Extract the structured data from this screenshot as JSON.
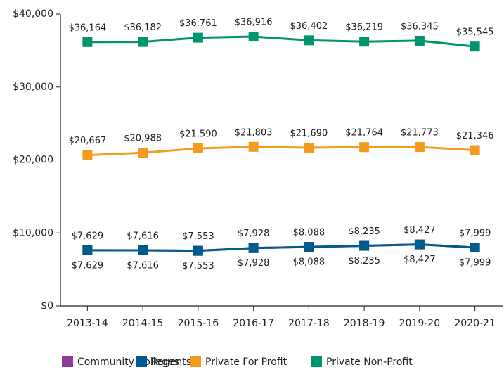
{
  "chart_data": {
    "type": "line",
    "categories": [
      "2013-14",
      "2014-15",
      "2015-16",
      "2016-17",
      "2017-18",
      "2018-19",
      "2019-20",
      "2020-21"
    ],
    "series": [
      {
        "name": "Community Colleges",
        "color": "#8e3a98",
        "values": [
          7629,
          7616,
          7553,
          7928,
          8088,
          8235,
          8427,
          7999
        ],
        "value_labels": [
          "$7,629",
          "$7,616",
          "$7,553",
          "$7,928",
          "$8,088",
          "$8,235",
          "$8,427",
          "$7,999"
        ]
      },
      {
        "name": "Regents",
        "color": "#005b8f",
        "values": [
          7629,
          7616,
          7553,
          7928,
          8088,
          8235,
          8427,
          7999
        ],
        "value_labels": [
          "$7,629",
          "$7,616",
          "$7,553",
          "$7,928",
          "$8,088",
          "$8,235",
          "$8,427",
          "$7,999"
        ]
      },
      {
        "name": "Private For Profit",
        "color": "#f39b1e",
        "values": [
          20667,
          20988,
          21590,
          21803,
          21690,
          21764,
          21773,
          21346
        ],
        "value_labels": [
          "$20,667",
          "$20,988",
          "$21,590",
          "$21,803",
          "$21,690",
          "$21,764",
          "$21,773",
          "$21,346"
        ]
      },
      {
        "name": "Private Non-Profit",
        "color": "#00946f",
        "values": [
          36164,
          36182,
          36761,
          36916,
          36402,
          36219,
          36345,
          35545
        ],
        "value_labels": [
          "$36,164",
          "$36,182",
          "$36,761",
          "$36,916",
          "$36,402",
          "$36,219",
          "$36,345",
          "$35,545"
        ]
      }
    ],
    "ylim": [
      0,
      40000
    ],
    "yticks": [
      {
        "value": 0,
        "label": "$0"
      },
      {
        "value": 10000,
        "label": "$10,000"
      },
      {
        "value": 20000,
        "label": "$20,000"
      },
      {
        "value": 30000,
        "label": "$30,000"
      },
      {
        "value": 40000,
        "label": "$40,000"
      }
    ],
    "legend": "bottom"
  }
}
